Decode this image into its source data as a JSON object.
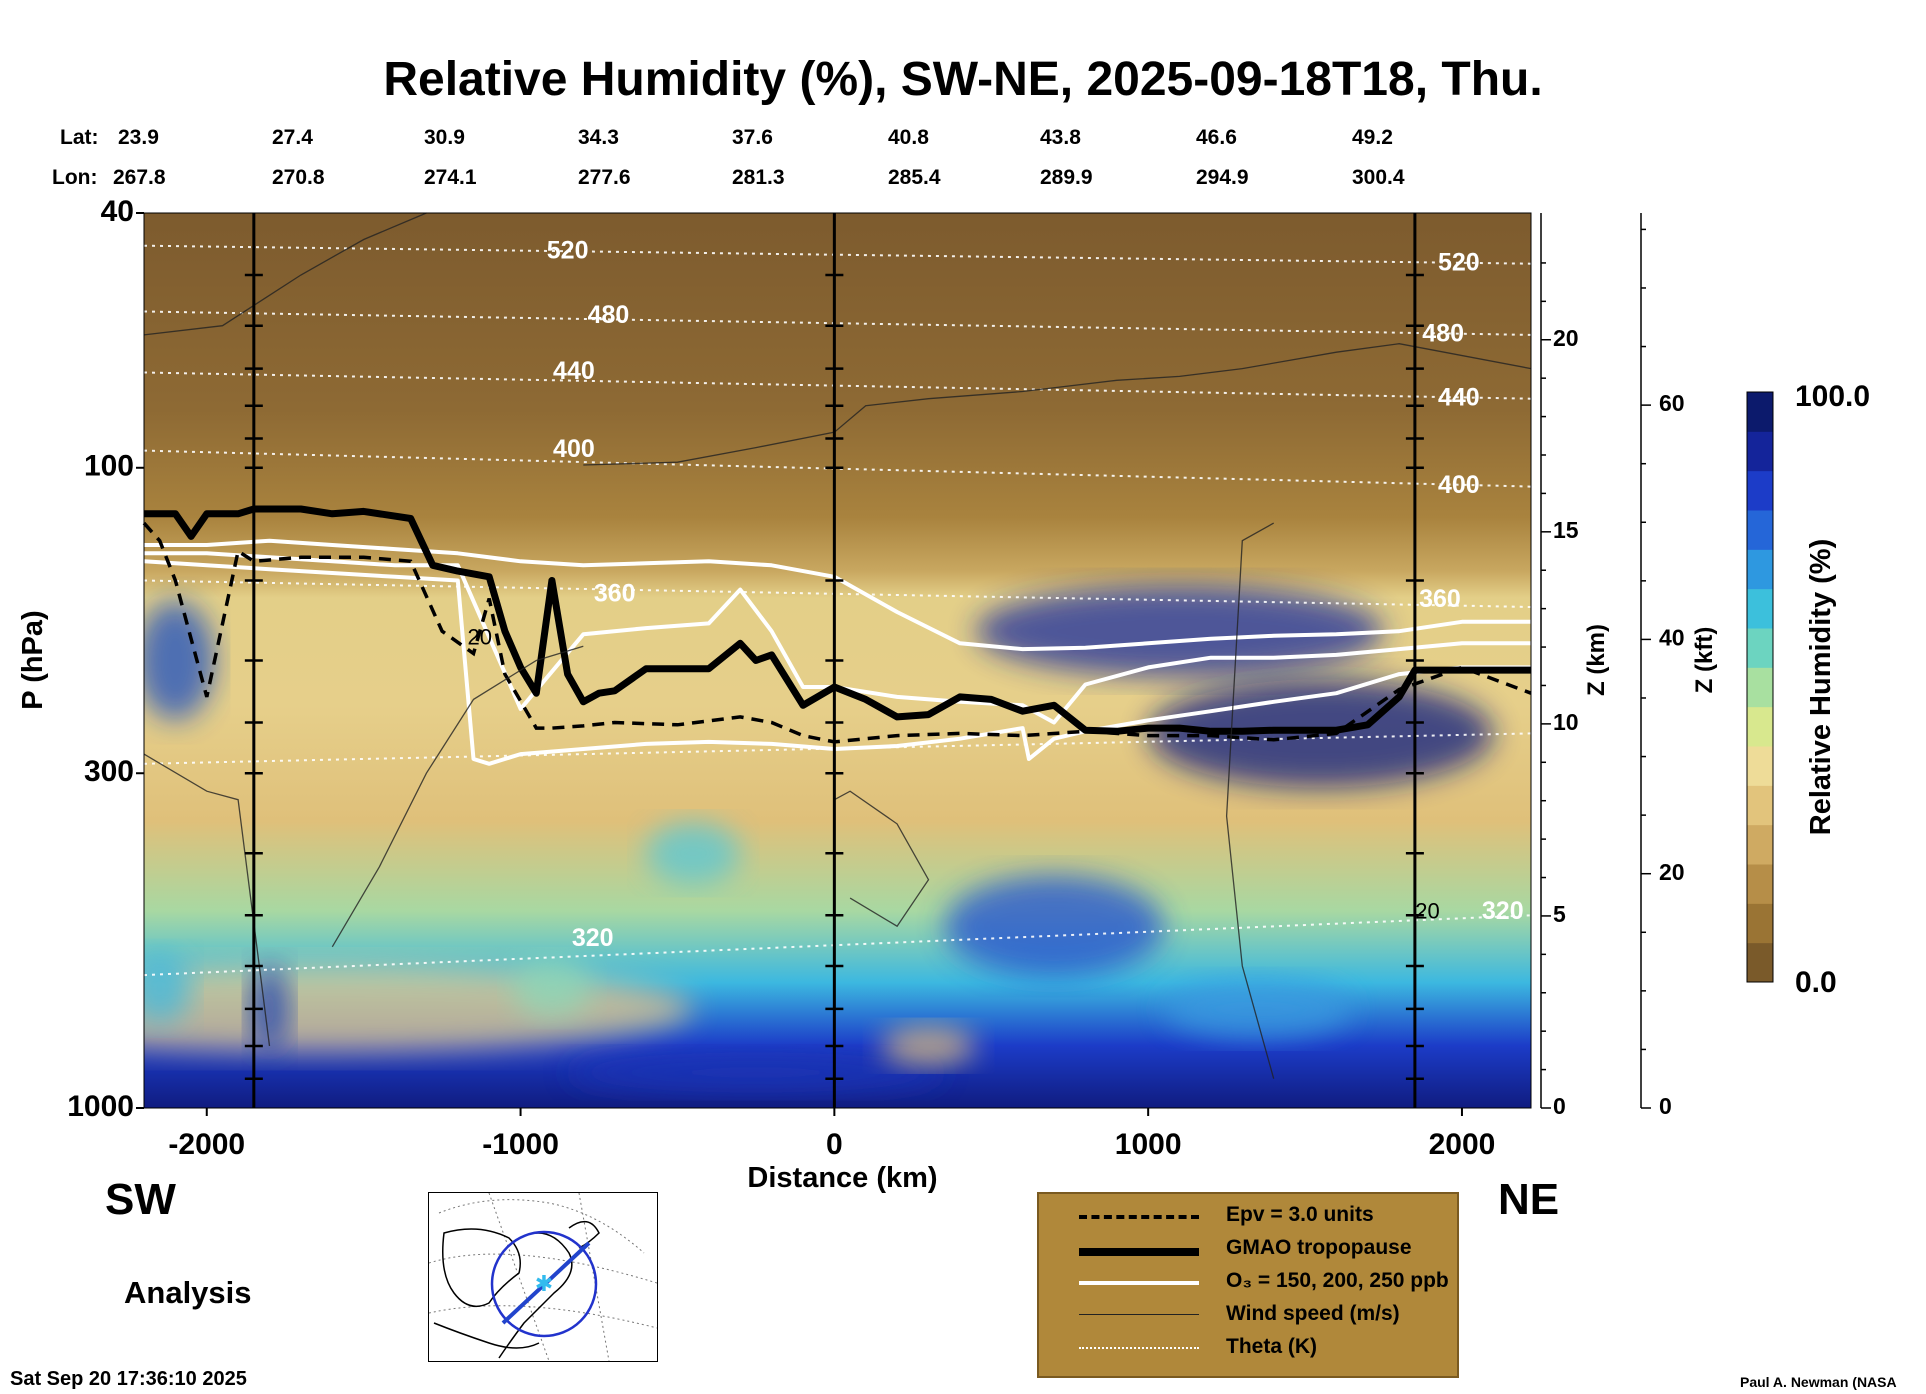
{
  "title": "Relative Humidity (%), SW-NE, 2025-09-18T18, Thu.",
  "lat_label": "Lat:",
  "lon_label": "Lon:",
  "lat_values": [
    "23.9",
    "27.4",
    "30.9",
    "34.3",
    "37.6",
    "40.8",
    "43.8",
    "46.6",
    "49.2"
  ],
  "lon_values": [
    "267.8",
    "270.8",
    "274.1",
    "277.6",
    "281.3",
    "285.4",
    "289.9",
    "294.9",
    "300.4"
  ],
  "left_end_label": "SW",
  "right_end_label": "NE",
  "analysis_label": "Analysis",
  "timestamp": "Sat Sep 20 17:36:10 2025",
  "credit": "Paul A. Newman (NASA",
  "colorbar": {
    "label": "Relative Humidity (%)",
    "max_label": "100.0",
    "min_label": "0.0",
    "colors": [
      "#7a5a2a",
      "#9a7434",
      "#b68e48",
      "#cfaa62",
      "#e2c47c",
      "#eedc98",
      "#d8e88e",
      "#a8e0a0",
      "#6cd4c0",
      "#3cc0dc",
      "#2e98e0",
      "#2566d8",
      "#1c3cc8",
      "#14249a",
      "#0c1a6c"
    ]
  },
  "legend": {
    "items": [
      {
        "label": "Epv = 3.0 units",
        "style": "dashed-black"
      },
      {
        "label": "GMAO tropopause",
        "style": "thick-black"
      },
      {
        "label": "O₃ = 150, 200, 250 ppb",
        "style": "white"
      },
      {
        "label": "Wind speed (m/s)",
        "style": "thin-black"
      },
      {
        "label": "Theta (K)",
        "style": "dotted-white"
      }
    ]
  },
  "chart_data": {
    "type": "heatmap",
    "title": "Relative Humidity (%), SW-NE, 2025-09-18T18, Thu.",
    "xlabel": "Distance (km)",
    "ylabel": "P (hPa)",
    "y2label": "Z (km)",
    "y3label": "Z (kft)",
    "xlim": [
      -2200,
      2220
    ],
    "ylim_hpa": [
      1000,
      40
    ],
    "y_scale": "log",
    "x_ticks": [
      -2000,
      -1000,
      0,
      1000,
      2000
    ],
    "x_tick_labels": [
      "-2000",
      "-1000",
      "0",
      "1000",
      "2000"
    ],
    "y_ticks": [
      1000,
      300,
      100,
      40
    ],
    "y_tick_labels": [
      "1000",
      "300",
      "100",
      "40"
    ],
    "z_km_ticks": [
      0,
      5,
      10,
      15,
      20
    ],
    "z_km_tick_labels": [
      "0",
      "5",
      "10",
      "15",
      "20"
    ],
    "z_kft_ticks": [
      0,
      20,
      40,
      60
    ],
    "z_kft_tick_labels": [
      "0",
      "20",
      "40",
      "60"
    ],
    "vertical_lines_km": [
      -1850,
      0,
      1850
    ],
    "theta_labels": [
      {
        "value": "520",
        "x": -850,
        "p": 46
      },
      {
        "value": "480",
        "x": -720,
        "p": 58
      },
      {
        "value": "440",
        "x": -830,
        "p": 71
      },
      {
        "value": "400",
        "x": -830,
        "p": 94
      },
      {
        "value": "360",
        "x": -700,
        "p": 158
      },
      {
        "value": "320",
        "x": -770,
        "p": 545
      },
      {
        "value": "520",
        "x": 1990,
        "p": 48
      },
      {
        "value": "480",
        "x": 1940,
        "p": 62
      },
      {
        "value": "440",
        "x": 1990,
        "p": 78
      },
      {
        "value": "400",
        "x": 1990,
        "p": 107
      },
      {
        "value": "360",
        "x": 1930,
        "p": 161
      },
      {
        "value": "320",
        "x": 2130,
        "p": 495
      }
    ],
    "wind_labels": [
      {
        "value": "20",
        "x": -1130,
        "p": 185
      },
      {
        "value": "20",
        "x": 1890,
        "p": 495
      }
    ],
    "tropopause": {
      "x": [
        -2200,
        -2100,
        -2050,
        -2000,
        -1900,
        -1850,
        -1700,
        -1600,
        -1500,
        -1350,
        -1280,
        -1200,
        -1100,
        -1050,
        -1000,
        -950,
        -900,
        -850,
        -800,
        -750,
        -700,
        -600,
        -500,
        -400,
        -300,
        -250,
        -200,
        -100,
        0,
        100,
        200,
        300,
        400,
        500,
        600,
        700,
        800,
        900,
        1000,
        1100,
        1200,
        1300,
        1400,
        1500,
        1600,
        1700,
        1800,
        1850,
        2000,
        2220
      ],
      "p": [
        118,
        118,
        128,
        118,
        118,
        116,
        116,
        118,
        117,
        120,
        142,
        145,
        148,
        180,
        205,
        225,
        150,
        210,
        232,
        225,
        223,
        206,
        206,
        206,
        188,
        200,
        196,
        235,
        220,
        230,
        245,
        243,
        228,
        230,
        240,
        235,
        257,
        258,
        255,
        255,
        258,
        258,
        257,
        257,
        257,
        252,
        228,
        207,
        207,
        207
      ]
    },
    "epv_3": {
      "x": [
        -2200,
        -2150,
        -2100,
        -2050,
        -2000,
        -1900,
        -1850,
        -1700,
        -1500,
        -1350,
        -1250,
        -1150,
        -1100,
        -1050,
        -950,
        -900,
        -800,
        -700,
        -500,
        -300,
        -200,
        -100,
        0,
        200,
        400,
        600,
        800,
        1000,
        1200,
        1400,
        1600,
        1800,
        2000,
        2220
      ],
      "p": [
        122,
        130,
        150,
        185,
        228,
        135,
        140,
        138,
        138,
        140,
        180,
        195,
        160,
        210,
        255,
        255,
        253,
        250,
        252,
        245,
        250,
        262,
        268,
        262,
        260,
        262,
        258,
        262,
        262,
        266,
        260,
        222,
        205,
        225
      ]
    },
    "o3_contours": [
      {
        "x": [
          -2200,
          -2000,
          -1800,
          -1600,
          -1400,
          -1200,
          -1000,
          -800,
          -600,
          -400,
          -200,
          0,
          200,
          400,
          600,
          800,
          1000,
          1200,
          1400,
          1600,
          1800,
          2000,
          2220
        ],
        "p": [
          132,
          132,
          130,
          132,
          134,
          136,
          140,
          142,
          141,
          140,
          142,
          148,
          168,
          188,
          192,
          191,
          188,
          185,
          183,
          182,
          180,
          174,
          174
        ]
      },
      {
        "x": [
          -2200,
          -2000,
          -1800,
          -1600,
          -1400,
          -1200,
          -1000,
          -800,
          -600,
          -400,
          -300,
          -200,
          -100,
          0,
          200,
          400,
          600,
          700,
          800,
          1000,
          1200,
          1400,
          1600,
          1800,
          2000,
          2220
        ],
        "p": [
          136,
          136,
          138,
          140,
          142,
          142,
          238,
          182,
          178,
          175,
          155,
          180,
          220,
          220,
          228,
          232,
          235,
          250,
          218,
          205,
          198,
          198,
          196,
          192,
          188,
          188
        ]
      },
      {
        "x": [
          -2200,
          -2000,
          -1800,
          -1600,
          -1400,
          -1200,
          -1150,
          -1100,
          -1000,
          -800,
          -600,
          -400,
          -200,
          0,
          200,
          400,
          600,
          620,
          700,
          800,
          1000,
          1200,
          1400,
          1600,
          1800,
          2000,
          2220
        ],
        "p": [
          140,
          142,
          144,
          146,
          148,
          150,
          285,
          290,
          280,
          275,
          270,
          268,
          270,
          275,
          272,
          265,
          255,
          285,
          265,
          258,
          248,
          240,
          232,
          225,
          210,
          205,
          205
        ]
      }
    ],
    "theta_levels": [
      {
        "value": 520,
        "p_left": 45,
        "p_right": 48
      },
      {
        "value": 480,
        "p_left": 57,
        "p_right": 62
      },
      {
        "value": 440,
        "p_left": 71,
        "p_right": 78
      },
      {
        "value": 400,
        "p_left": 94,
        "p_right": 107
      },
      {
        "value": 360,
        "p_left": 150,
        "p_right": 165
      },
      {
        "value": 320,
        "p_left": 620,
        "p_right": 500
      },
      {
        "value": 310,
        "p_left": 290,
        "p_right": 260
      }
    ]
  }
}
